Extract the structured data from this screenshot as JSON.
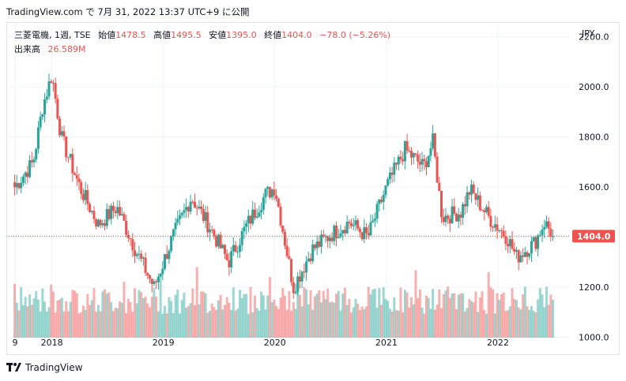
{
  "header": {
    "text": "TradingView.com で 7月 31, 2022 13:37 UTC+9 に公開"
  },
  "legend": {
    "symbol": "三菱電機, 1週, TSE",
    "open_label": "始値",
    "open": "1478.5",
    "high_label": "高値",
    "high": "1495.5",
    "low_label": "安値",
    "low": "1395.0",
    "close_label": "終値",
    "close": "1404.0",
    "change": "−78.0 (−5.26%)",
    "volume_label": "出来高",
    "volume": "26.589M"
  },
  "currency": "JPY",
  "footer": {
    "brand": "TradingView"
  },
  "colors": {
    "up": "#26a69a",
    "down": "#ef5350",
    "grid": "#f0f3fa",
    "price_line": "#ef5350"
  },
  "chart_data": {
    "type": "candlestick",
    "symbol": "三菱電機",
    "interval": "1週",
    "exchange": "TSE",
    "currency": "JPY",
    "y_ticks": [
      "2200.0",
      "2000.0",
      "1800.0",
      "1600.0",
      "1400.0",
      "1200.0",
      "1000.0"
    ],
    "x_ticks": [
      "9",
      "2018",
      "2019",
      "2020",
      "2021",
      "2022"
    ],
    "ylim": [
      980,
      2240
    ],
    "last_price": "1404.0",
    "grid": true,
    "approx_close_path": [
      {
        "date": "2017-09",
        "close": 1600
      },
      {
        "date": "2017-11",
        "close": 1700
      },
      {
        "date": "2017-12",
        "close": 1920
      },
      {
        "date": "2018-01",
        "close": 2050
      },
      {
        "date": "2018-02",
        "close": 1800
      },
      {
        "date": "2018-04",
        "close": 1600
      },
      {
        "date": "2018-06",
        "close": 1450
      },
      {
        "date": "2018-08",
        "close": 1520
      },
      {
        "date": "2018-10",
        "close": 1350
      },
      {
        "date": "2018-12",
        "close": 1200
      },
      {
        "date": "2019-02",
        "close": 1400
      },
      {
        "date": "2019-04",
        "close": 1560
      },
      {
        "date": "2019-06",
        "close": 1440
      },
      {
        "date": "2019-08",
        "close": 1300
      },
      {
        "date": "2019-10",
        "close": 1450
      },
      {
        "date": "2019-12",
        "close": 1570
      },
      {
        "date": "2020-01",
        "close": 1600
      },
      {
        "date": "2020-03",
        "close": 1200
      },
      {
        "date": "2020-05",
        "close": 1350
      },
      {
        "date": "2020-07",
        "close": 1410
      },
      {
        "date": "2020-09",
        "close": 1460
      },
      {
        "date": "2020-11",
        "close": 1400
      },
      {
        "date": "2021-01",
        "close": 1600
      },
      {
        "date": "2021-03",
        "close": 1750
      },
      {
        "date": "2021-05",
        "close": 1680
      },
      {
        "date": "2021-06",
        "close": 1780
      },
      {
        "date": "2021-07",
        "close": 1480
      },
      {
        "date": "2021-09",
        "close": 1500
      },
      {
        "date": "2021-10",
        "close": 1590
      },
      {
        "date": "2021-12",
        "close": 1480
      },
      {
        "date": "2022-02",
        "close": 1400
      },
      {
        "date": "2022-03",
        "close": 1320
      },
      {
        "date": "2022-05",
        "close": 1380
      },
      {
        "date": "2022-06",
        "close": 1460
      },
      {
        "date": "2022-07",
        "close": 1404
      }
    ]
  }
}
